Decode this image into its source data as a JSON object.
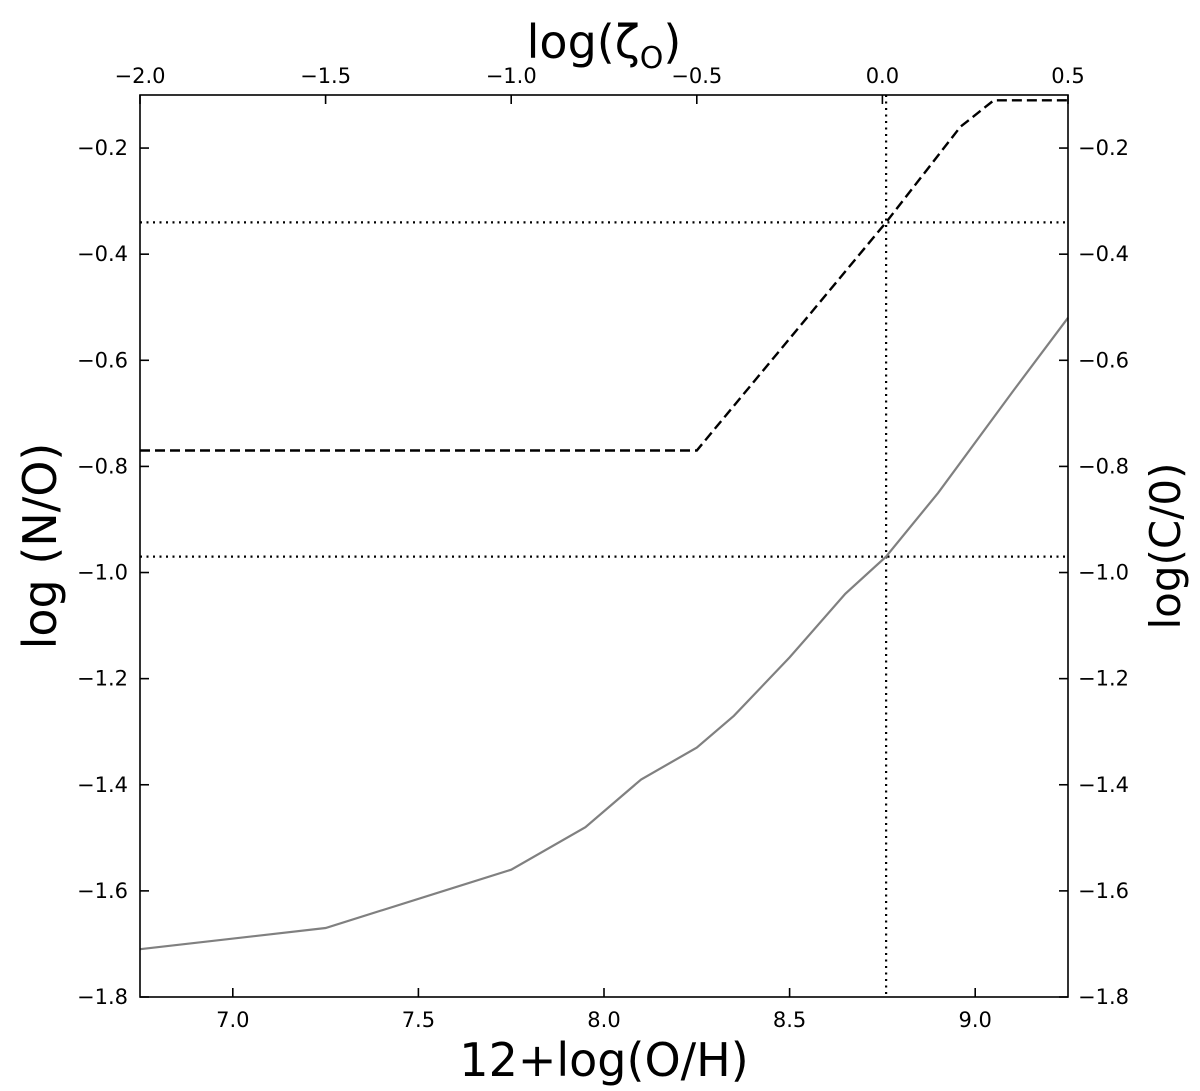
{
  "chart_data": {
    "type": "line",
    "xlabel_bottom": "12+log(O/H)",
    "xlabel_top": "log(ζ",
    "xlabel_top_sub": "O",
    "xlabel_top_close": ")",
    "ylabel_left": "log (N/O)",
    "ylabel_right": "log(C/0)",
    "xlim_bottom": [
      6.75,
      9.25
    ],
    "xlim_top": [
      -2.0,
      0.5
    ],
    "ylim": [
      -1.8,
      -0.1
    ],
    "bottom_ticks": [
      "7.0",
      "7.5",
      "8.0",
      "8.5",
      "9.0"
    ],
    "bottom_tick_values": [
      7.0,
      7.5,
      8.0,
      8.5,
      9.0
    ],
    "top_ticks": [
      "−2.0",
      "−1.5",
      "−1.0",
      "−0.5",
      "0.0",
      "0.5"
    ],
    "top_tick_values": [
      -2.0,
      -1.5,
      -1.0,
      -0.5,
      0.0,
      0.5
    ],
    "left_ticks": [
      "−0.2",
      "−0.4",
      "−0.6",
      "−0.8",
      "−1.0",
      "−1.2",
      "−1.4",
      "−1.6",
      "−1.8"
    ],
    "left_tick_values": [
      -0.2,
      -0.4,
      -0.6,
      -0.8,
      -1.0,
      -1.2,
      -1.4,
      -1.6,
      -1.8
    ],
    "right_ticks": [
      "−0.2",
      "−0.4",
      "−0.6",
      "−0.8",
      "−1.0",
      "−1.2",
      "−1.4",
      "−1.6",
      "−1.8"
    ],
    "right_tick_values": [
      -0.2,
      -0.4,
      -0.6,
      -0.8,
      -1.0,
      -1.2,
      -1.4,
      -1.6,
      -1.8
    ],
    "series": [
      {
        "style": "solid",
        "color": "#808080",
        "x": [
          6.75,
          7.25,
          7.75,
          7.95,
          8.1,
          8.25,
          8.35,
          8.5,
          8.65,
          8.76,
          8.9,
          9.1,
          9.25
        ],
        "y": [
          -1.71,
          -1.67,
          -1.56,
          -1.48,
          -1.39,
          -1.33,
          -1.27,
          -1.16,
          -1.04,
          -0.97,
          -0.85,
          -0.66,
          -0.52
        ]
      },
      {
        "style": "dashed",
        "color": "#000000",
        "x": [
          6.75,
          8.25,
          8.76,
          8.96,
          9.05,
          9.25
        ],
        "y": [
          -0.77,
          -0.77,
          -0.34,
          -0.16,
          -0.11,
          -0.11
        ]
      }
    ],
    "reference_lines": [
      {
        "orientation": "horizontal",
        "y": -0.34,
        "style": "dotted",
        "color": "#000000"
      },
      {
        "orientation": "horizontal",
        "y": -0.97,
        "style": "dotted",
        "color": "#000000"
      },
      {
        "orientation": "vertical",
        "x": 8.76,
        "style": "dotted",
        "color": "#000000"
      }
    ],
    "grid": false
  }
}
